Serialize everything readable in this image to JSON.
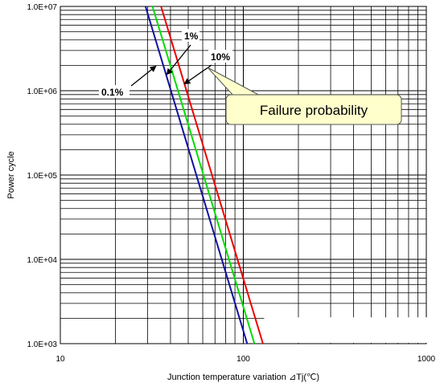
{
  "chart_data": {
    "type": "line",
    "x_scale": "log",
    "y_scale": "log",
    "xlim": [
      10,
      1000
    ],
    "ylim": [
      1000,
      10000000
    ],
    "x_ticks": [
      "10",
      "100",
      "1000"
    ],
    "y_ticks": [
      "1.0E+03",
      "1.0E+04",
      "1.0E+05",
      "1.0E+06",
      "1.0E+07"
    ],
    "xlabel": "Junction temperature variation ⊿Tj(℃)",
    "ylabel": "Power cycle",
    "grid": true,
    "series": [
      {
        "name": "0.1%",
        "color": "#1010a0",
        "x": [
          29.2,
          105
        ],
        "y": [
          10000000,
          1000
        ]
      },
      {
        "name": "1%",
        "color": "#00dd00",
        "x": [
          31.9,
          115
        ],
        "y": [
          10000000,
          1000
        ]
      },
      {
        "name": "10%",
        "color": "#ee0000",
        "x": [
          35.5,
          128
        ],
        "y": [
          10000000,
          1000
        ]
      }
    ],
    "annotations": {
      "callout": "Failure probability"
    }
  }
}
